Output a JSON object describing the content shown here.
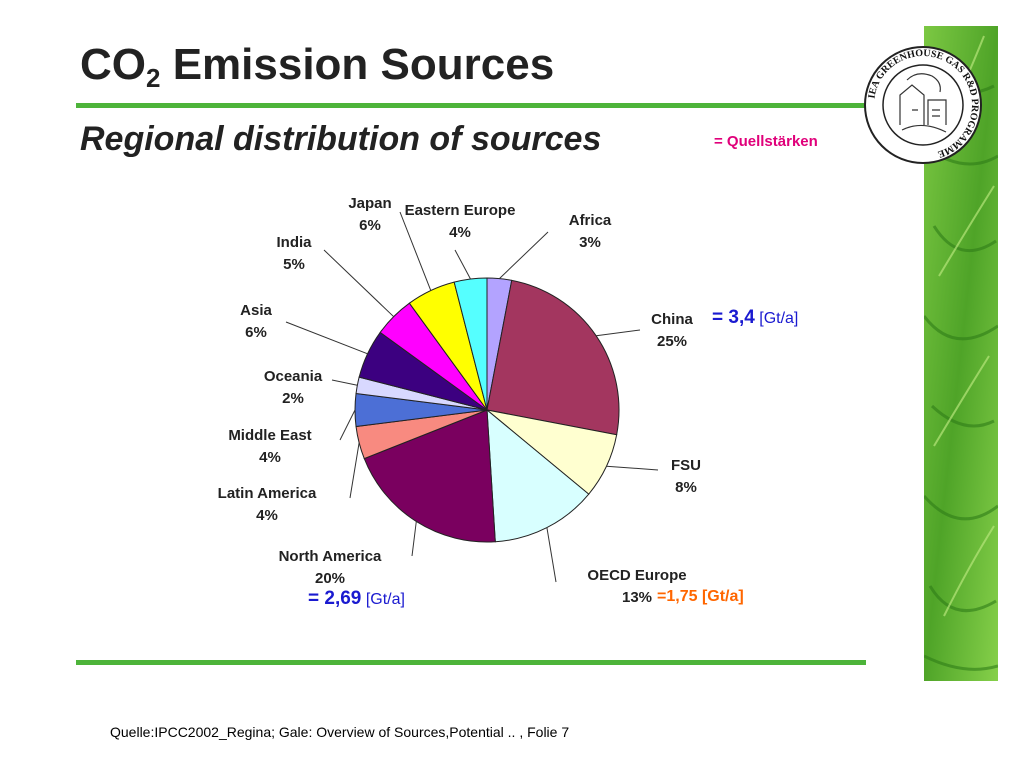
{
  "slide": {
    "title_main": "CO",
    "title_sub": "2",
    "title_rest": " Emission Sources",
    "subtitle": "Regional distribution of sources",
    "quell_label": "= Quellstärken",
    "source": "Quelle:IPCC2002_Regina; Gale: Overview of Sources,Potential .. , Folie 7",
    "logo_text": "IEA GREENHOUSE GAS R&D PROGRAMME",
    "accent_color": "#4db43a"
  },
  "annotations": {
    "china": {
      "value": "= 3,4",
      "unit": "[Gt/a]",
      "color": "#1a1ad0"
    },
    "north_america": {
      "value": "= 2,69",
      "unit": "[Gt/a]",
      "color": "#1a1ad0"
    },
    "oecd_europe": {
      "value": "=1,75",
      "unit": "[Gt/a]",
      "color": "#ff6600"
    }
  },
  "chart_data": {
    "type": "pie",
    "title": "",
    "start_at": "12 o'clock",
    "direction": "clockwise",
    "slices": [
      {
        "label": "Africa",
        "value": 3,
        "pct": "3%",
        "color": "#b3a3ff"
      },
      {
        "label": "China",
        "value": 25,
        "pct": "25%",
        "color": "#a3365f"
      },
      {
        "label": "FSU",
        "value": 8,
        "pct": "8%",
        "color": "#ffffd0"
      },
      {
        "label": "OECD Europe",
        "value": 13,
        "pct": "13%",
        "color": "#d8ffff"
      },
      {
        "label": "North America",
        "value": 20,
        "pct": "20%",
        "color": "#7a005f"
      },
      {
        "label": "Latin America",
        "value": 4,
        "pct": "4%",
        "color": "#f88a80"
      },
      {
        "label": "Middle East",
        "value": 4,
        "pct": "4%",
        "color": "#4c6fd6"
      },
      {
        "label": "Oceania",
        "value": 2,
        "pct": "2%",
        "color": "#d8d8ff"
      },
      {
        "label": "Asia",
        "value": 6,
        "pct": "6%",
        "color": "#3c0080"
      },
      {
        "label": "India",
        "value": 5,
        "pct": "5%",
        "color": "#ff00ff"
      },
      {
        "label": "Japan",
        "value": 6,
        "pct": "6%",
        "color": "#ffff00"
      },
      {
        "label": "Eastern Europe",
        "value": 4,
        "pct": "4%",
        "color": "#55ffff"
      }
    ]
  }
}
